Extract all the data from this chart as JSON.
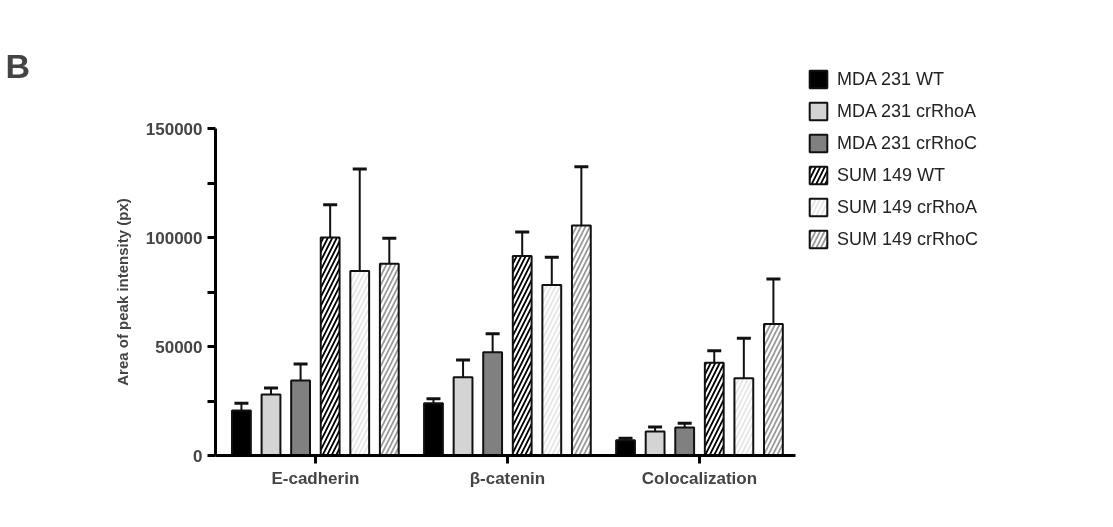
{
  "chart_data": {
    "type": "bar",
    "annotations": [
      "B"
    ],
    "ylabel": "Area of peak intensity (px)",
    "categories": [
      "E-cadherin",
      "β-catenin",
      "Colocalization"
    ],
    "series": [
      {
        "name": "MDA 231 WT",
        "color": "#000000",
        "values": [
          20600,
          24000,
          7000
        ],
        "errors": [
          [
            20600,
            24000
          ],
          [
            24000,
            26000
          ],
          [
            7000,
            7900
          ]
        ]
      },
      {
        "name": "MDA 231 crRhoA",
        "color": "#d4d4d4",
        "values": [
          28000,
          35900,
          11000
        ],
        "errors": [
          [
            28000,
            31000
          ],
          [
            35900,
            43800
          ],
          [
            11000,
            13100
          ]
        ]
      },
      {
        "name": "MDA 231 crRhoC",
        "color": "#808080",
        "values": [
          34400,
          47400,
          12800
        ],
        "errors": [
          [
            34400,
            42000
          ],
          [
            47400,
            55900
          ],
          [
            12800,
            14800
          ]
        ]
      },
      {
        "name": "SUM 149 WT",
        "color": "#000000",
        "values": [
          100000,
          91500,
          42600
        ],
        "errors": [
          [
            100000,
            115000
          ],
          [
            91500,
            102500
          ],
          [
            42600,
            48100
          ]
        ]
      },
      {
        "name": "SUM 149 crRhoA",
        "color": "#e6e6e6",
        "values": [
          84600,
          78200,
          35400
        ],
        "errors": [
          [
            84600,
            131400
          ],
          [
            78200,
            90900
          ],
          [
            35400,
            53800
          ]
        ]
      },
      {
        "name": "SUM 149 crRhoC",
        "color": "#9a9a9a",
        "values": [
          88000,
          105500,
          60300
        ],
        "errors": [
          [
            88000,
            99700
          ],
          [
            105500,
            132400
          ],
          [
            60300,
            81000
          ]
        ]
      }
    ],
    "ylim": [
      0,
      150000
    ],
    "yticks": [
      0,
      {
        "value": 25000,
        "label": null
      },
      50000,
      {
        "value": 75000,
        "label": null
      },
      100000,
      {
        "value": 125000,
        "label": null
      },
      150000
    ],
    "grid": false,
    "legend": "right"
  }
}
